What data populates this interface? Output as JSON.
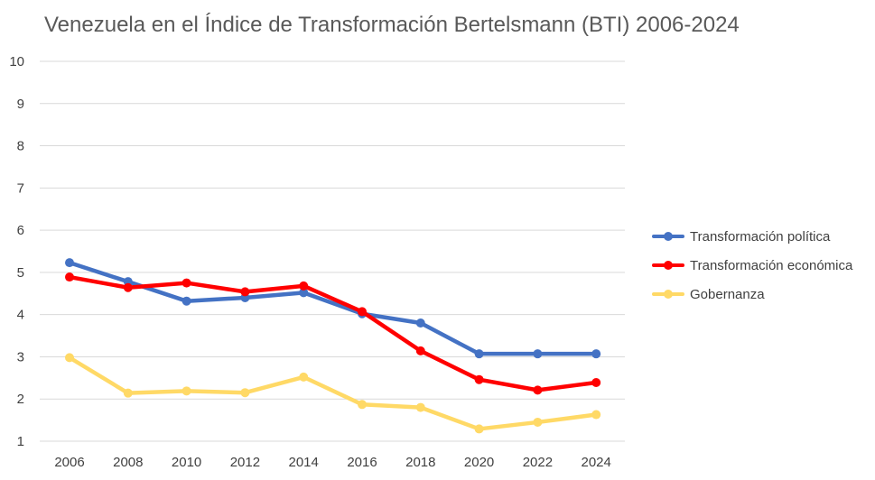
{
  "chart_data": {
    "type": "line",
    "title": "Venezuela en el Índice de Transformación Bertelsmann (BTI) 2006-2024",
    "x": [
      "2006",
      "2008",
      "2010",
      "2012",
      "2014",
      "2016",
      "2018",
      "2020",
      "2022",
      "2024"
    ],
    "ylim": [
      1,
      10
    ],
    "yticks": [
      "1",
      "2",
      "3",
      "4",
      "5",
      "6",
      "7",
      "8",
      "9",
      "10"
    ],
    "grid": true,
    "legend_position": "right",
    "series": [
      {
        "name": "Transformación política",
        "color": "#4472C4",
        "values": [
          5.23,
          4.78,
          4.32,
          4.4,
          4.52,
          4.02,
          3.8,
          3.07,
          3.07,
          3.07
        ]
      },
      {
        "name": "Transformación económica",
        "color": "#FF0000",
        "values": [
          4.89,
          4.64,
          4.75,
          4.54,
          4.68,
          4.07,
          3.14,
          2.46,
          2.21,
          2.39
        ]
      },
      {
        "name": "Gobernanza",
        "color": "#FFD966",
        "values": [
          2.98,
          2.14,
          2.19,
          2.15,
          2.52,
          1.87,
          1.8,
          1.29,
          1.45,
          1.63
        ]
      }
    ]
  }
}
